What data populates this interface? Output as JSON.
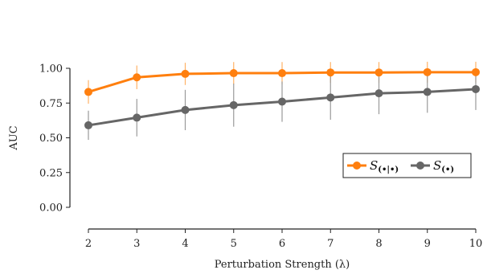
{
  "chart_data": {
    "type": "line",
    "xlabel": "Perturbation Strength (λ)",
    "ylabel": "AUC",
    "x": [
      2,
      3,
      4,
      5,
      6,
      7,
      8,
      9,
      10
    ],
    "xlim": [
      2,
      10
    ],
    "ylim": [
      0.0,
      1.05
    ],
    "yticks": [
      0.0,
      0.25,
      0.5,
      0.75,
      1.0
    ],
    "ytick_labels": [
      "0.00",
      "0.25",
      "0.50",
      "0.75",
      "1.00"
    ],
    "xtick_labels": [
      "2",
      "3",
      "4",
      "5",
      "6",
      "7",
      "8",
      "9",
      "10"
    ],
    "grid": false,
    "legend_position": "middle-right",
    "series": [
      {
        "name": "S(•|•)",
        "name_main": "S",
        "name_sub": "(•|•)",
        "color": "#ff7f0e",
        "values": [
          0.83,
          0.935,
          0.96,
          0.965,
          0.965,
          0.97,
          0.97,
          0.972,
          0.972
        ],
        "err": [
          0.085,
          0.085,
          0.08,
          0.08,
          0.08,
          0.075,
          0.075,
          0.075,
          0.075
        ]
      },
      {
        "name": "S(•)",
        "name_main": "S",
        "name_sub": "(•)",
        "color": "#666666",
        "values": [
          0.59,
          0.645,
          0.7,
          0.735,
          0.76,
          0.79,
          0.82,
          0.83,
          0.85
        ],
        "err": [
          0.105,
          0.135,
          0.145,
          0.155,
          0.145,
          0.16,
          0.15,
          0.15,
          0.15
        ]
      }
    ]
  }
}
